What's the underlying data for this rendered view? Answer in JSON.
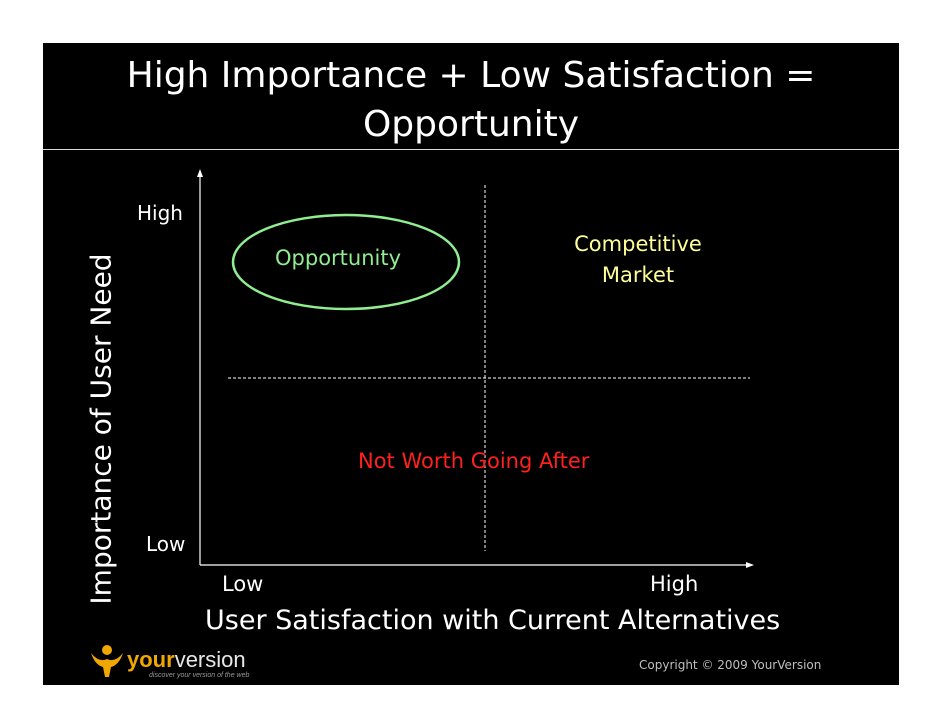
{
  "slide": {
    "title_line1": "High Importance + Low Satisfaction =",
    "title_line2": "Opportunity",
    "y_axis_label": "Importance of User Need",
    "x_axis_label": "User Satisfaction with Current Alternatives",
    "y_high": "High",
    "y_low": "Low",
    "x_low": "Low",
    "x_high": "High",
    "quadrants": {
      "opportunity": "Opportunity",
      "competitive": "Competitive Market",
      "not_worth": "Not Worth Going After"
    },
    "copyright": "Copyright © 2009 YourVersion"
  },
  "logo": {
    "word_a": "your",
    "word_b": "version",
    "tagline": "discover your version of the web"
  },
  "colors": {
    "background": "#000000",
    "opportunity": "#90ee90",
    "competitive": "#ffff99",
    "not_worth": "#ff2020",
    "logo_orange": "#f0a800"
  }
}
